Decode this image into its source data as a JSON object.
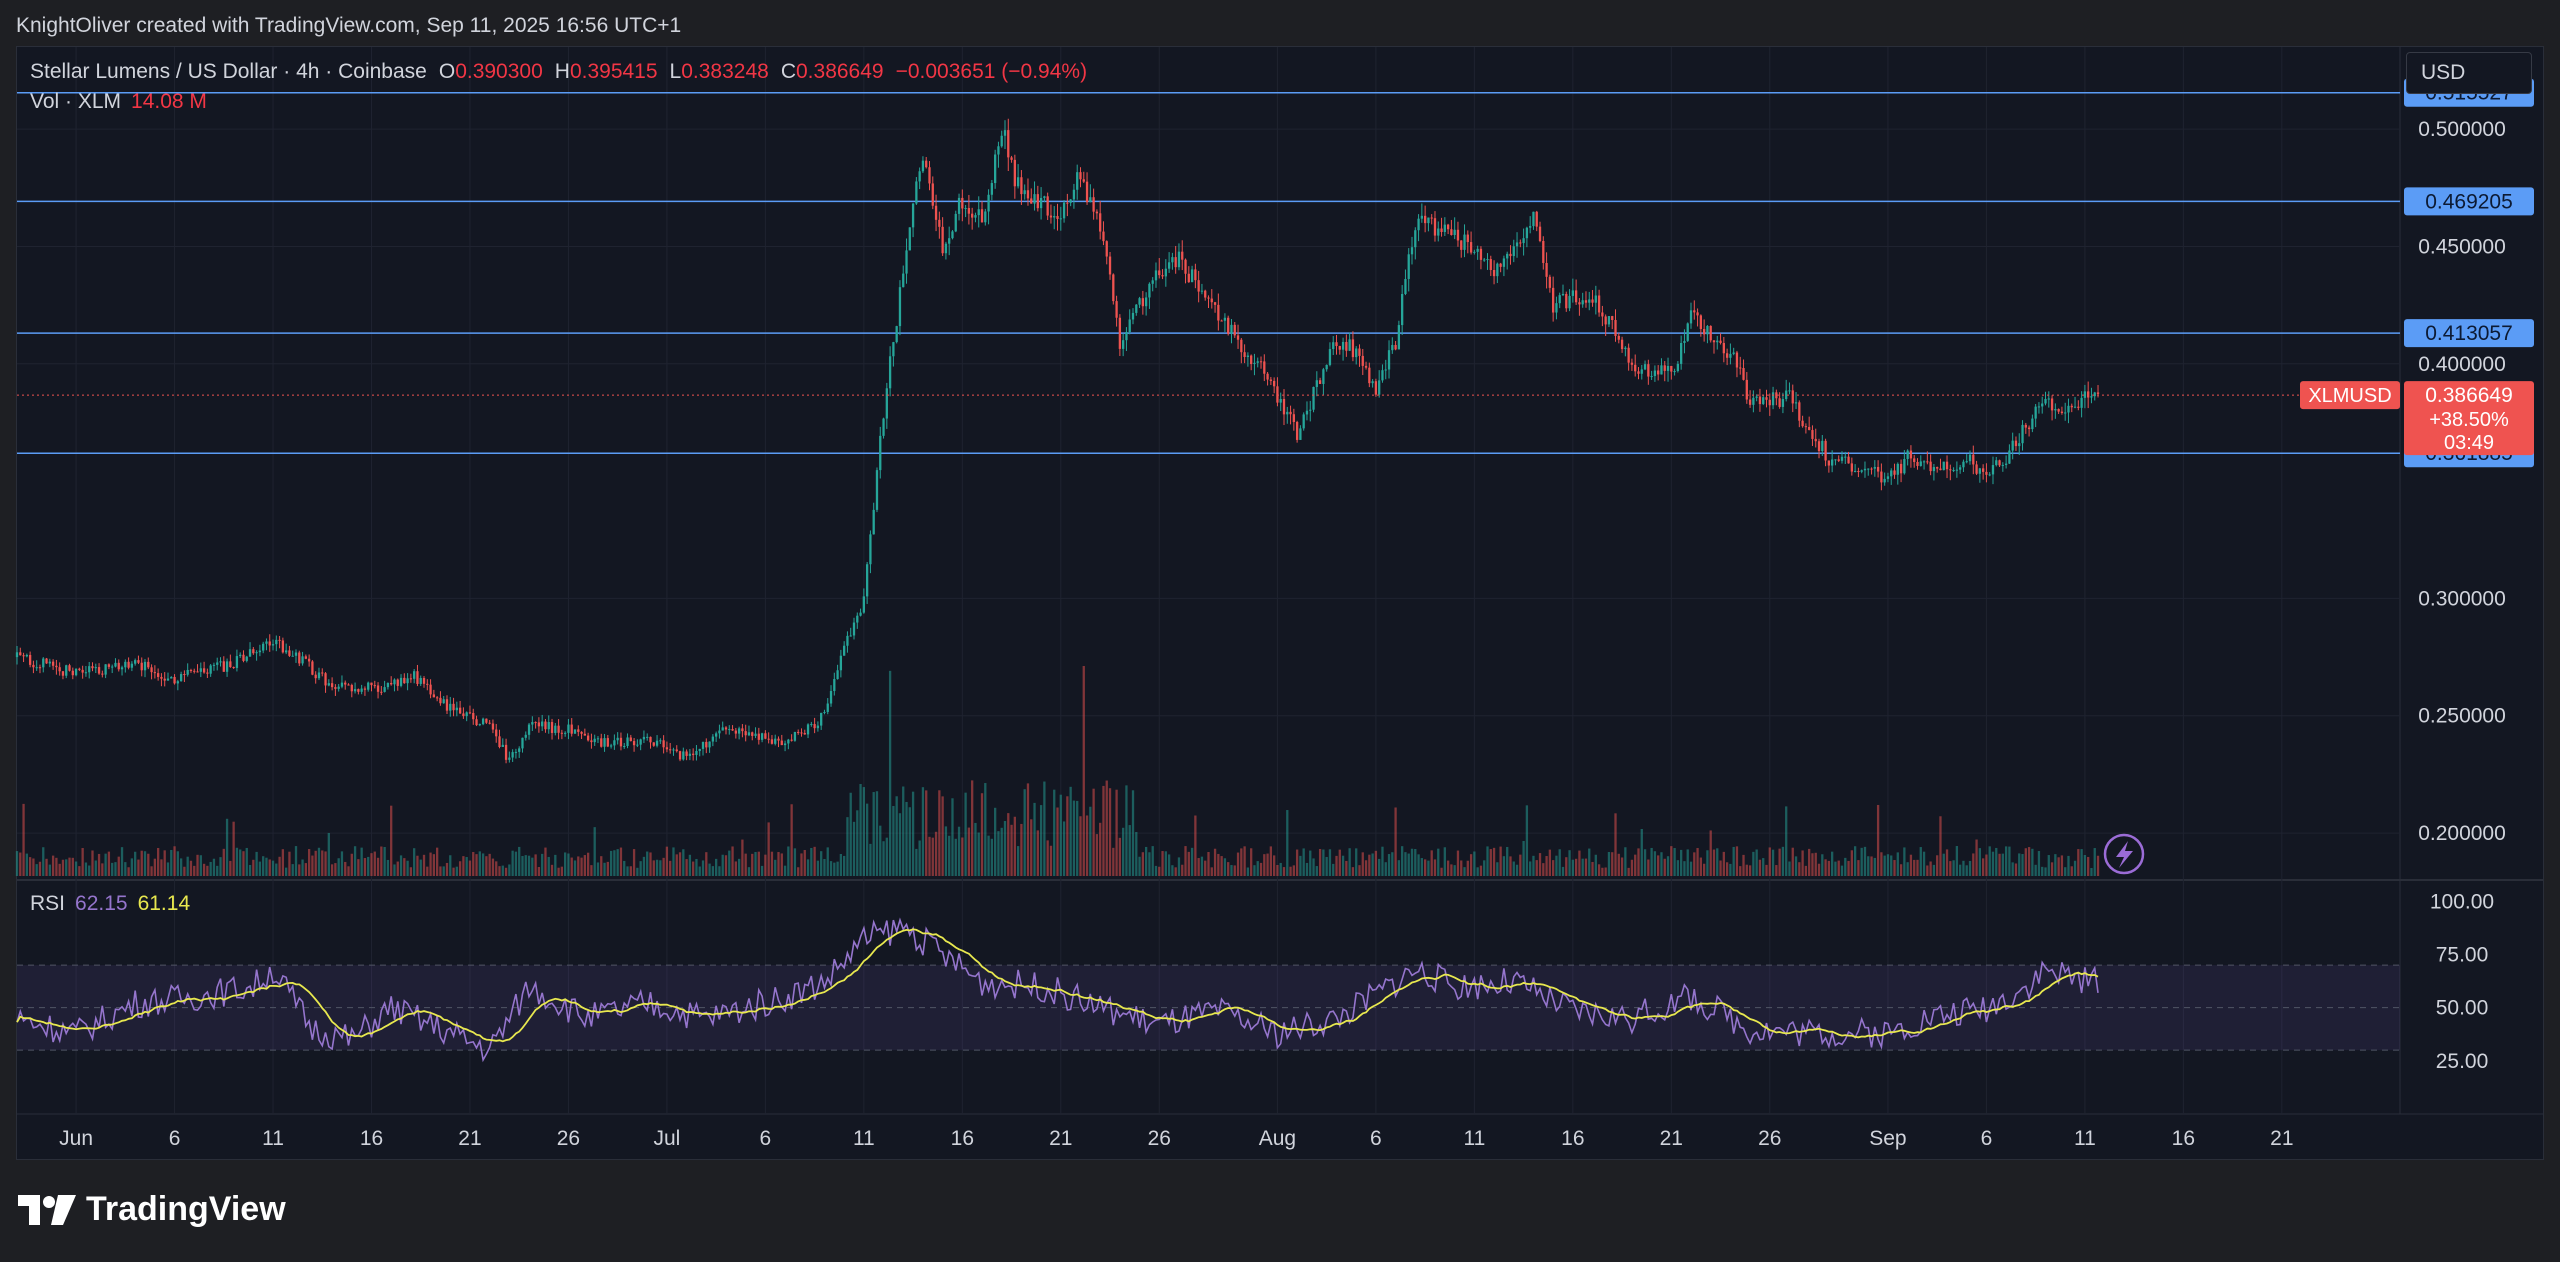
{
  "header": {
    "caption": "KnightOliver created with TradingView.com, Sep 11, 2025 16:56 UTC+1"
  },
  "legend": {
    "symbol": "Stellar Lumens / US Dollar · 4h · Coinbase",
    "open_label": "O",
    "open": "0.390300",
    "high_label": "H",
    "high": "0.395415",
    "low_label": "L",
    "low": "0.383248",
    "close_label": "C",
    "close": "0.386649",
    "change": "−0.003651 (−0.94%)",
    "vol_label": "Vol · XLM",
    "vol_value": "14.08 M"
  },
  "rsi": {
    "label": "RSI",
    "value": "62.15",
    "ma_value": "61.14"
  },
  "currency": "USD",
  "brand": "TradingView",
  "price_tag": {
    "symbol": "XLMUSD",
    "price": "0.386649",
    "change_pct": "+38.50%",
    "countdown": "03:49"
  },
  "colors": {
    "up": "#26a69a",
    "down": "#ef5350",
    "rsi": "#9575cd",
    "rsi_ma": "#e8e84f",
    "level": "#5b9cf6",
    "tag_blue": "#2962ff"
  },
  "chart_data": {
    "type": "candlestick",
    "timeframe": "4h",
    "x_range": [
      "2025-05-29",
      "2025-09-27"
    ],
    "price_axis": {
      "range": [
        0.18,
        0.535
      ],
      "ticks": [
        "0.500000",
        "0.450000",
        "0.400000",
        "0.300000",
        "0.250000",
        "0.200000"
      ]
    },
    "rsi_axis": {
      "range": [
        0,
        110
      ],
      "ticks": [
        "100.00",
        "75.00",
        "50.00",
        "25.00"
      ],
      "band": [
        30,
        70
      ],
      "mid": 50
    },
    "x_ticks": [
      {
        "label": "Jun",
        "date": "2025-06-01"
      },
      {
        "label": "6",
        "date": "2025-06-06"
      },
      {
        "label": "11",
        "date": "2025-06-11"
      },
      {
        "label": "16",
        "date": "2025-06-16"
      },
      {
        "label": "21",
        "date": "2025-06-21"
      },
      {
        "label": "26",
        "date": "2025-06-26"
      },
      {
        "label": "Jul",
        "date": "2025-07-01"
      },
      {
        "label": "6",
        "date": "2025-07-06"
      },
      {
        "label": "11",
        "date": "2025-07-11"
      },
      {
        "label": "16",
        "date": "2025-07-16"
      },
      {
        "label": "21",
        "date": "2025-07-21"
      },
      {
        "label": "26",
        "date": "2025-07-26"
      },
      {
        "label": "Aug",
        "date": "2025-08-01"
      },
      {
        "label": "6",
        "date": "2025-08-06"
      },
      {
        "label": "11",
        "date": "2025-08-11"
      },
      {
        "label": "16",
        "date": "2025-08-16"
      },
      {
        "label": "21",
        "date": "2025-08-21"
      },
      {
        "label": "26",
        "date": "2025-08-26"
      },
      {
        "label": "Sep",
        "date": "2025-09-01"
      },
      {
        "label": "6",
        "date": "2025-09-06"
      },
      {
        "label": "11",
        "date": "2025-09-11"
      },
      {
        "label": "16",
        "date": "2025-09-16"
      },
      {
        "label": "21",
        "date": "2025-09-21"
      }
    ],
    "horizontal_levels": [
      "0.515527",
      "0.469205",
      "0.413057",
      "0.361885"
    ],
    "price_path": [
      [
        "2025-05-29",
        0.275
      ],
      [
        "2025-06-01",
        0.268
      ],
      [
        "2025-06-04",
        0.272
      ],
      [
        "2025-06-06",
        0.266
      ],
      [
        "2025-06-09",
        0.272
      ],
      [
        "2025-06-11",
        0.282
      ],
      [
        "2025-06-12",
        0.277
      ],
      [
        "2025-06-14",
        0.262
      ],
      [
        "2025-06-17",
        0.262
      ],
      [
        "2025-06-18",
        0.268
      ],
      [
        "2025-06-20",
        0.253
      ],
      [
        "2025-06-22",
        0.246
      ],
      [
        "2025-06-23",
        0.23
      ],
      [
        "2025-06-24",
        0.246
      ],
      [
        "2025-06-26",
        0.244
      ],
      [
        "2025-06-28",
        0.238
      ],
      [
        "2025-06-30",
        0.24
      ],
      [
        "2025-07-02",
        0.232
      ],
      [
        "2025-07-04",
        0.244
      ],
      [
        "2025-07-07",
        0.238
      ],
      [
        "2025-07-09",
        0.25
      ],
      [
        "2025-07-10",
        0.28
      ],
      [
        "2025-07-11",
        0.3
      ],
      [
        "2025-07-12",
        0.38
      ],
      [
        "2025-07-13",
        0.44
      ],
      [
        "2025-07-14",
        0.49
      ],
      [
        "2025-07-15",
        0.45
      ],
      [
        "2025-07-16",
        0.47
      ],
      [
        "2025-07-17",
        0.46
      ],
      [
        "2025-07-18",
        0.5
      ],
      [
        "2025-07-19",
        0.47
      ],
      [
        "2025-07-21",
        0.465
      ],
      [
        "2025-07-22",
        0.48
      ],
      [
        "2025-07-23",
        0.46
      ],
      [
        "2025-07-24",
        0.41
      ],
      [
        "2025-07-26",
        0.44
      ],
      [
        "2025-07-27",
        0.445
      ],
      [
        "2025-07-29",
        0.42
      ],
      [
        "2025-07-31",
        0.4
      ],
      [
        "2025-08-02",
        0.37
      ],
      [
        "2025-08-04",
        0.41
      ],
      [
        "2025-08-05",
        0.405
      ],
      [
        "2025-08-06",
        0.39
      ],
      [
        "2025-08-07",
        0.41
      ],
      [
        "2025-08-08",
        0.46
      ],
      [
        "2025-08-10",
        0.455
      ],
      [
        "2025-08-12",
        0.44
      ],
      [
        "2025-08-14",
        0.462
      ],
      [
        "2025-08-15",
        0.425
      ],
      [
        "2025-08-17",
        0.43
      ],
      [
        "2025-08-19",
        0.4
      ],
      [
        "2025-08-21",
        0.395
      ],
      [
        "2025-08-22",
        0.42
      ],
      [
        "2025-08-24",
        0.405
      ],
      [
        "2025-08-25",
        0.385
      ],
      [
        "2025-08-27",
        0.385
      ],
      [
        "2025-08-29",
        0.36
      ],
      [
        "2025-08-31",
        0.355
      ],
      [
        "2025-09-01",
        0.35
      ],
      [
        "2025-09-02",
        0.36
      ],
      [
        "2025-09-04",
        0.355
      ],
      [
        "2025-09-05",
        0.36
      ],
      [
        "2025-09-06",
        0.352
      ],
      [
        "2025-09-07",
        0.36
      ],
      [
        "2025-09-09",
        0.385
      ],
      [
        "2025-09-10",
        0.378
      ],
      [
        "2025-09-11",
        0.3866
      ]
    ],
    "rsi_path": [
      [
        "2025-05-29",
        45
      ],
      [
        "2025-06-01",
        38
      ],
      [
        "2025-06-04",
        52
      ],
      [
        "2025-06-07",
        55
      ],
      [
        "2025-06-10",
        60
      ],
      [
        "2025-06-11",
        68
      ],
      [
        "2025-06-13",
        40
      ],
      [
        "2025-06-15",
        35
      ],
      [
        "2025-06-17",
        50
      ],
      [
        "2025-06-19",
        42
      ],
      [
        "2025-06-22",
        30
      ],
      [
        "2025-06-24",
        60
      ],
      [
        "2025-06-27",
        45
      ],
      [
        "2025-06-30",
        52
      ],
      [
        "2025-07-03",
        45
      ],
      [
        "2025-07-07",
        55
      ],
      [
        "2025-07-09",
        62
      ],
      [
        "2025-07-11",
        82
      ],
      [
        "2025-07-13",
        88
      ],
      [
        "2025-07-15",
        75
      ],
      [
        "2025-07-17",
        62
      ],
      [
        "2025-07-20",
        60
      ],
      [
        "2025-07-23",
        50
      ],
      [
        "2025-07-26",
        42
      ],
      [
        "2025-07-29",
        48
      ],
      [
        "2025-08-01",
        38
      ],
      [
        "2025-08-04",
        45
      ],
      [
        "2025-08-08",
        68
      ],
      [
        "2025-08-10",
        60
      ],
      [
        "2025-08-13",
        62
      ],
      [
        "2025-08-16",
        48
      ],
      [
        "2025-08-19",
        45
      ],
      [
        "2025-08-22",
        55
      ],
      [
        "2025-08-25",
        40
      ],
      [
        "2025-08-29",
        38
      ],
      [
        "2025-09-01",
        38
      ],
      [
        "2025-09-03",
        45
      ],
      [
        "2025-09-06",
        50
      ],
      [
        "2025-09-08",
        60
      ],
      [
        "2025-09-09",
        68
      ],
      [
        "2025-09-11",
        62.15
      ]
    ]
  }
}
